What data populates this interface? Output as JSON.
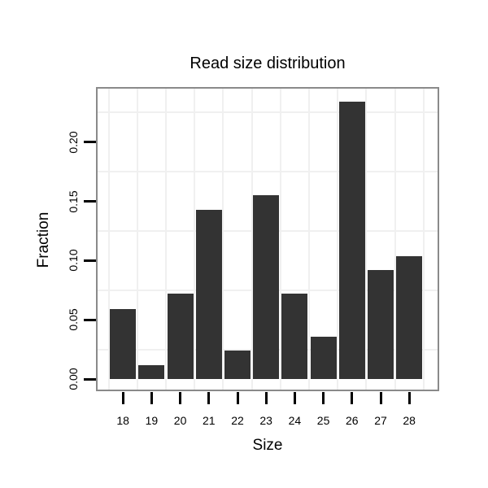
{
  "chart_data": {
    "type": "bar",
    "title": "Read size distribution",
    "xlabel": "Size",
    "ylabel": "Fraction",
    "categories": [
      "18",
      "19",
      "20",
      "21",
      "22",
      "23",
      "24",
      "25",
      "26",
      "27",
      "28"
    ],
    "values": [
      0.059,
      0.012,
      0.072,
      0.143,
      0.024,
      0.155,
      0.072,
      0.036,
      0.234,
      0.092,
      0.104
    ],
    "y_ticks": [
      0.0,
      0.05,
      0.1,
      0.15,
      0.2
    ],
    "y_tick_labels": [
      "0.00",
      "0.05",
      "0.10",
      "0.15",
      "0.20"
    ],
    "grid_minor_y": [
      0.025,
      0.075,
      0.125,
      0.175,
      0.225
    ],
    "ylim": [
      -0.012,
      0.247
    ],
    "grid": "minor gridlines only, no major gridlines",
    "legend": "none",
    "colors": {
      "bar": "#333333",
      "panel_border": "#8a8a8a",
      "gridline": "#f0f0f0",
      "tick": "#000000",
      "text": "#000000",
      "background": "#ffffff"
    }
  }
}
